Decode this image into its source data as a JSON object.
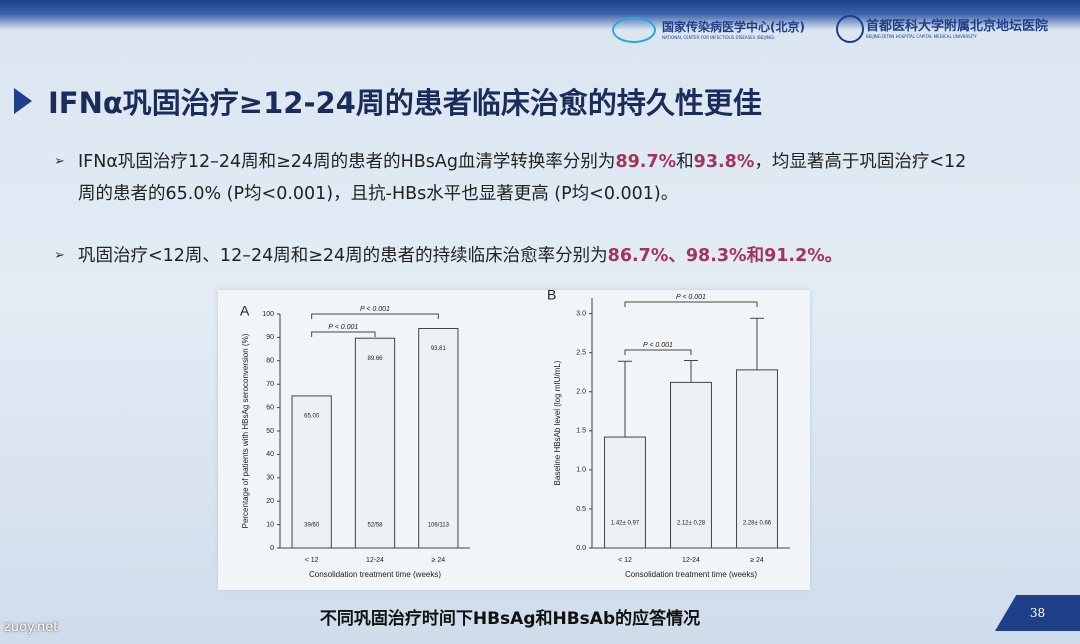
{
  "header": {
    "logo1": "国家传染病医学中心(北京)",
    "logo1_sub": "NATIONAL CENTER FOR INFECTIOUS DISEASES (BEIJING)",
    "logo2": "首都医科大学附属北京地坛医院",
    "logo2_sub": "BEIJING DITAN HOSPITAL CAPITAL MEDICAL UNIVERSITY"
  },
  "slide": {
    "title": "IFNα巩固治疗≥12-24周的患者临床治愈的持久性更佳",
    "highlight_color": "#a3345c",
    "bullets": [
      [
        {
          "text": "IFNα巩固治疗12–24周和≥24周的患者的HBsAg血清学转换率分别为",
          "highlight": false
        },
        {
          "text": "89.7%",
          "highlight": true
        },
        {
          "text": "和",
          "highlight": false
        },
        {
          "text": "93.8%",
          "highlight": true
        },
        {
          "text": "，均显著高于巩固治疗<12周的患者的65.0% (P均<0.001)，且抗-HBs水平也显著更高 (P均<0.001)。",
          "highlight": false
        }
      ],
      [
        {
          "text": "巩固治疗<12周、12–24周和≥24周的患者的持续临床治愈率分别为",
          "highlight": false
        },
        {
          "text": "86.7%、98.3%和91.2%。",
          "highlight": true
        }
      ]
    ],
    "caption": "不同巩固治疗时间下HBsAg和HBsAb的应答情况",
    "page_number": "38"
  },
  "watermark": "zuoy.net",
  "chart_data": [
    {
      "type": "bar",
      "panel": "A",
      "ylabel": "Percentage of patients with HBsAg seroconversion (%)",
      "xlabel": "Consolidation treatment time (weeks)",
      "categories": [
        "< 12",
        "12-24",
        "≥ 24"
      ],
      "values": [
        65.0,
        89.66,
        93.81
      ],
      "value_labels": [
        "65.00",
        "89.66",
        "93.81"
      ],
      "counts": [
        "39/60",
        "52/58",
        "106/113"
      ],
      "color": "#eef1f4",
      "ylim": [
        0,
        100
      ],
      "yticks": [
        0,
        10,
        20,
        30,
        40,
        50,
        60,
        70,
        80,
        90,
        100
      ],
      "comparisons": [
        {
          "between": [
            0,
            2
          ],
          "label": "P < 0.001"
        },
        {
          "between": [
            0,
            1
          ],
          "label": "P < 0.001"
        }
      ]
    },
    {
      "type": "bar",
      "panel": "B",
      "ylabel": "Baseline HBsAb level (log mIU/mL)",
      "xlabel": "Consolidation treatment time (weeks)",
      "categories": [
        "< 12",
        "12-24",
        "≥ 24"
      ],
      "values": [
        1.42,
        2.12,
        2.28
      ],
      "errors": [
        0.97,
        0.28,
        0.66
      ],
      "value_labels": [
        "1.42± 0.97",
        "2.12± 0.28",
        "2.28± 0.66"
      ],
      "color": "#eef1f4",
      "ylim": [
        0,
        3.2
      ],
      "yticks": [
        {
          "value": 0,
          "label": "0.0"
        },
        {
          "value": 0.5,
          "label": "0.5"
        },
        {
          "value": 1,
          "label": "1.0"
        },
        {
          "value": 1.5,
          "label": "1.5"
        },
        {
          "value": 2,
          "label": "2.0"
        },
        {
          "value": 2.5,
          "label": "2.5"
        },
        {
          "value": 3,
          "label": "3.0"
        }
      ],
      "comparisons": [
        {
          "between": [
            0,
            2
          ],
          "label": "P < 0.001"
        },
        {
          "between": [
            0,
            1
          ],
          "label": "P < 0.001"
        }
      ]
    }
  ]
}
